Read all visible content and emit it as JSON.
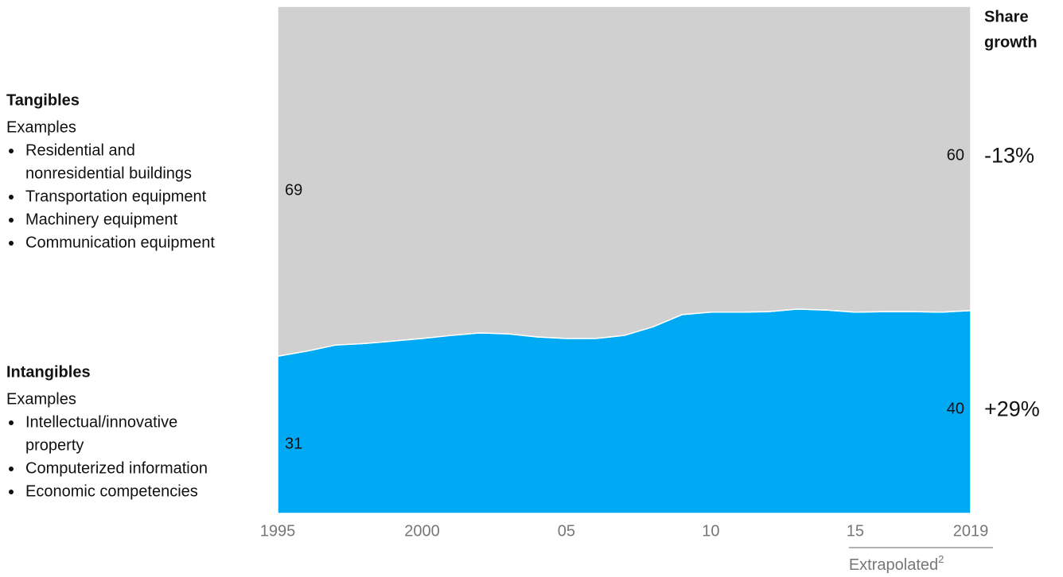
{
  "chart_data": {
    "type": "stacked-area",
    "x": [
      1995,
      1996,
      1997,
      1998,
      1999,
      2000,
      2001,
      2002,
      2003,
      2004,
      2005,
      2006,
      2007,
      2008,
      2009,
      2010,
      2011,
      2012,
      2013,
      2014,
      2015,
      2016,
      2017,
      2018,
      2019
    ],
    "xlim": [
      1995,
      2019
    ],
    "xticks": [
      1995,
      2000,
      {
        "value": 2005,
        "label": "05"
      },
      {
        "value": 2010,
        "label": "10"
      },
      {
        "value": 2015,
        "label": "15"
      },
      2019
    ],
    "ylim": [
      0,
      100
    ],
    "series": [
      {
        "name": "Intangibles",
        "color": "#00a9f4",
        "values": [
          31,
          32,
          33.2,
          33.5,
          34,
          34.5,
          35.1,
          35.6,
          35.4,
          34.8,
          34.5,
          34.5,
          35.1,
          36.8,
          39.2,
          39.7,
          39.7,
          39.8,
          40.3,
          40.1,
          39.7,
          39.8,
          39.8,
          39.7,
          40
        ],
        "examples_label": "Examples",
        "examples": [
          [
            "Intellectual/innovative",
            "property"
          ],
          [
            "Computerized information"
          ],
          [
            "Economic competencies"
          ]
        ]
      },
      {
        "name": "Tangibles",
        "color": "#d0d0d0",
        "values": [
          69,
          68,
          66.8,
          66.5,
          66,
          65.5,
          64.9,
          64.4,
          64.6,
          65.2,
          65.5,
          65.5,
          64.9,
          63.2,
          60.8,
          60.3,
          60.3,
          60.2,
          59.7,
          59.9,
          60.3,
          60.2,
          60.2,
          60.3,
          60
        ],
        "examples_label": "Examples",
        "examples": [
          [
            "Residential and",
            "nonresidential buildings"
          ],
          [
            "Transportation equipment"
          ],
          [
            "Machinery equipment"
          ],
          [
            "Communication equipment"
          ]
        ]
      }
    ],
    "share_growth": {
      "title": [
        "Share",
        "growth"
      ],
      "labels": [
        "+29%",
        "-13%"
      ]
    },
    "extrapolated": {
      "from": 2015,
      "to": 2019,
      "text": "Extrapolated",
      "footnote": "2"
    }
  }
}
